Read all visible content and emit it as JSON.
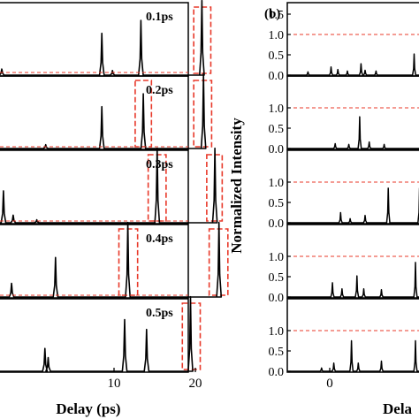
{
  "colors": {
    "trace": "#000000",
    "reference_line": "#e8392a",
    "highlight_box": "#e8392a",
    "axis": "#000000"
  },
  "chart_data": [
    {
      "type": "line",
      "panel_label": "",
      "xlabel": "Delay (ps)",
      "ylabel": "",
      "xlim": [
        -4,
        24
      ],
      "ylim": [
        0,
        1.2
      ],
      "x_ticks": [
        {
          "value": 10,
          "label": "10"
        },
        {
          "value": 20,
          "label": "20"
        }
      ],
      "reference_line": 1.0,
      "grid": false,
      "subplots": [
        {
          "label": "0.1ps",
          "peaks": [
            {
              "x": -3.8,
              "y": 0.08
            },
            {
              "x": 8.5,
              "y": 0.55
            },
            {
              "x": 9.8,
              "y": 0.06
            },
            {
              "x": 13.3,
              "y": 0.72
            },
            {
              "x": 20.8,
              "y": 0.98
            }
          ],
          "highlight_x": [
            [
              19.8,
              21.9
            ]
          ]
        },
        {
          "label": "0.2ps",
          "peaks": [
            {
              "x": 1.6,
              "y": 0.05
            },
            {
              "x": 8.5,
              "y": 0.55
            },
            {
              "x": 13.6,
              "y": 0.72
            },
            {
              "x": 21.0,
              "y": 0.98
            }
          ],
          "highlight_x": [
            [
              12.6,
              14.6
            ],
            [
              19.8,
              22.0
            ]
          ]
        },
        {
          "label": "0.3ps",
          "peaks": [
            {
              "x": -3.6,
              "y": 0.42
            },
            {
              "x": -2.4,
              "y": 0.1
            },
            {
              "x": 0.5,
              "y": 0.04
            },
            {
              "x": 15.3,
              "y": 0.98
            },
            {
              "x": 22.4,
              "y": 0.98
            }
          ],
          "highlight_x": [
            [
              14.2,
              16.4
            ],
            [
              21.4,
              23.3
            ]
          ]
        },
        {
          "label": "0.4ps",
          "peaks": [
            {
              "x": -2.6,
              "y": 0.18
            },
            {
              "x": 2.8,
              "y": 0.52
            },
            {
              "x": 11.7,
              "y": 0.98
            },
            {
              "x": 22.9,
              "y": 0.98
            }
          ],
          "highlight_x": [
            [
              10.6,
              12.9
            ],
            [
              21.7,
              24.0
            ]
          ]
        },
        {
          "label": "0.5ps",
          "peaks": [
            {
              "x": 1.5,
              "y": 0.3
            },
            {
              "x": 1.9,
              "y": 0.18
            },
            {
              "x": 11.3,
              "y": 0.68
            },
            {
              "x": 14.0,
              "y": 0.55
            },
            {
              "x": 19.4,
              "y": 0.98
            }
          ],
          "highlight_x": [
            [
              18.4,
              20.6
            ]
          ]
        }
      ]
    },
    {
      "type": "line",
      "panel_label": "(b)",
      "xlabel": "Dela",
      "ylabel": "Normalized Intensity",
      "xlim": [
        -4.5,
        9
      ],
      "ylim": [
        0,
        1.55
      ],
      "x_ticks": [
        {
          "value": 0,
          "label": "0"
        }
      ],
      "y_ticks": [
        {
          "value": 0.0,
          "label": "0.0"
        },
        {
          "value": 0.5,
          "label": "0.5"
        },
        {
          "value": 1.0,
          "label": "1.0"
        }
      ],
      "top_y_ticks": [
        {
          "value": 1.5,
          "label": "1.5"
        },
        {
          "value": 1.0,
          "label": "1.0"
        },
        {
          "value": 0.5,
          "label": "0.5"
        },
        {
          "value": 0.0,
          "label": "0.0"
        }
      ],
      "reference_line": 1.0,
      "grid": false,
      "subplots": [
        {
          "label": "",
          "peaks": [
            {
              "x": -1.6,
              "y": 0.08
            },
            {
              "x": 0.1,
              "y": 0.2
            },
            {
              "x": 0.6,
              "y": 0.14
            },
            {
              "x": 1.3,
              "y": 0.1
            },
            {
              "x": 2.3,
              "y": 0.28
            },
            {
              "x": 2.6,
              "y": 0.12
            },
            {
              "x": 3.4,
              "y": 0.1
            },
            {
              "x": 6.2,
              "y": 0.52
            },
            {
              "x": 8.1,
              "y": 0.42
            }
          ]
        },
        {
          "label": "",
          "peaks": [
            {
              "x": 0.4,
              "y": 0.12
            },
            {
              "x": 1.4,
              "y": 0.1
            },
            {
              "x": 2.2,
              "y": 0.78
            },
            {
              "x": 2.9,
              "y": 0.16
            },
            {
              "x": 4.0,
              "y": 0.1
            },
            {
              "x": 6.9,
              "y": 0.78
            }
          ]
        },
        {
          "label": "",
          "peaks": [
            {
              "x": 0.8,
              "y": 0.25
            },
            {
              "x": 1.5,
              "y": 0.1
            },
            {
              "x": 2.6,
              "y": 0.18
            },
            {
              "x": 4.3,
              "y": 0.85
            },
            {
              "x": 6.6,
              "y": 0.85
            }
          ]
        },
        {
          "label": "",
          "peaks": [
            {
              "x": 0.2,
              "y": 0.35
            },
            {
              "x": 0.9,
              "y": 0.2
            },
            {
              "x": 2.0,
              "y": 0.52
            },
            {
              "x": 2.5,
              "y": 0.2
            },
            {
              "x": 3.8,
              "y": 0.18
            },
            {
              "x": 6.3,
              "y": 0.85
            },
            {
              "x": 8.5,
              "y": 0.2
            }
          ]
        },
        {
          "label": "",
          "peaks": [
            {
              "x": -0.6,
              "y": 0.08
            },
            {
              "x": 0.3,
              "y": 0.2
            },
            {
              "x": 1.6,
              "y": 0.75
            },
            {
              "x": 2.1,
              "y": 0.2
            },
            {
              "x": 3.8,
              "y": 0.25
            },
            {
              "x": 6.3,
              "y": 0.75
            }
          ]
        }
      ]
    }
  ]
}
